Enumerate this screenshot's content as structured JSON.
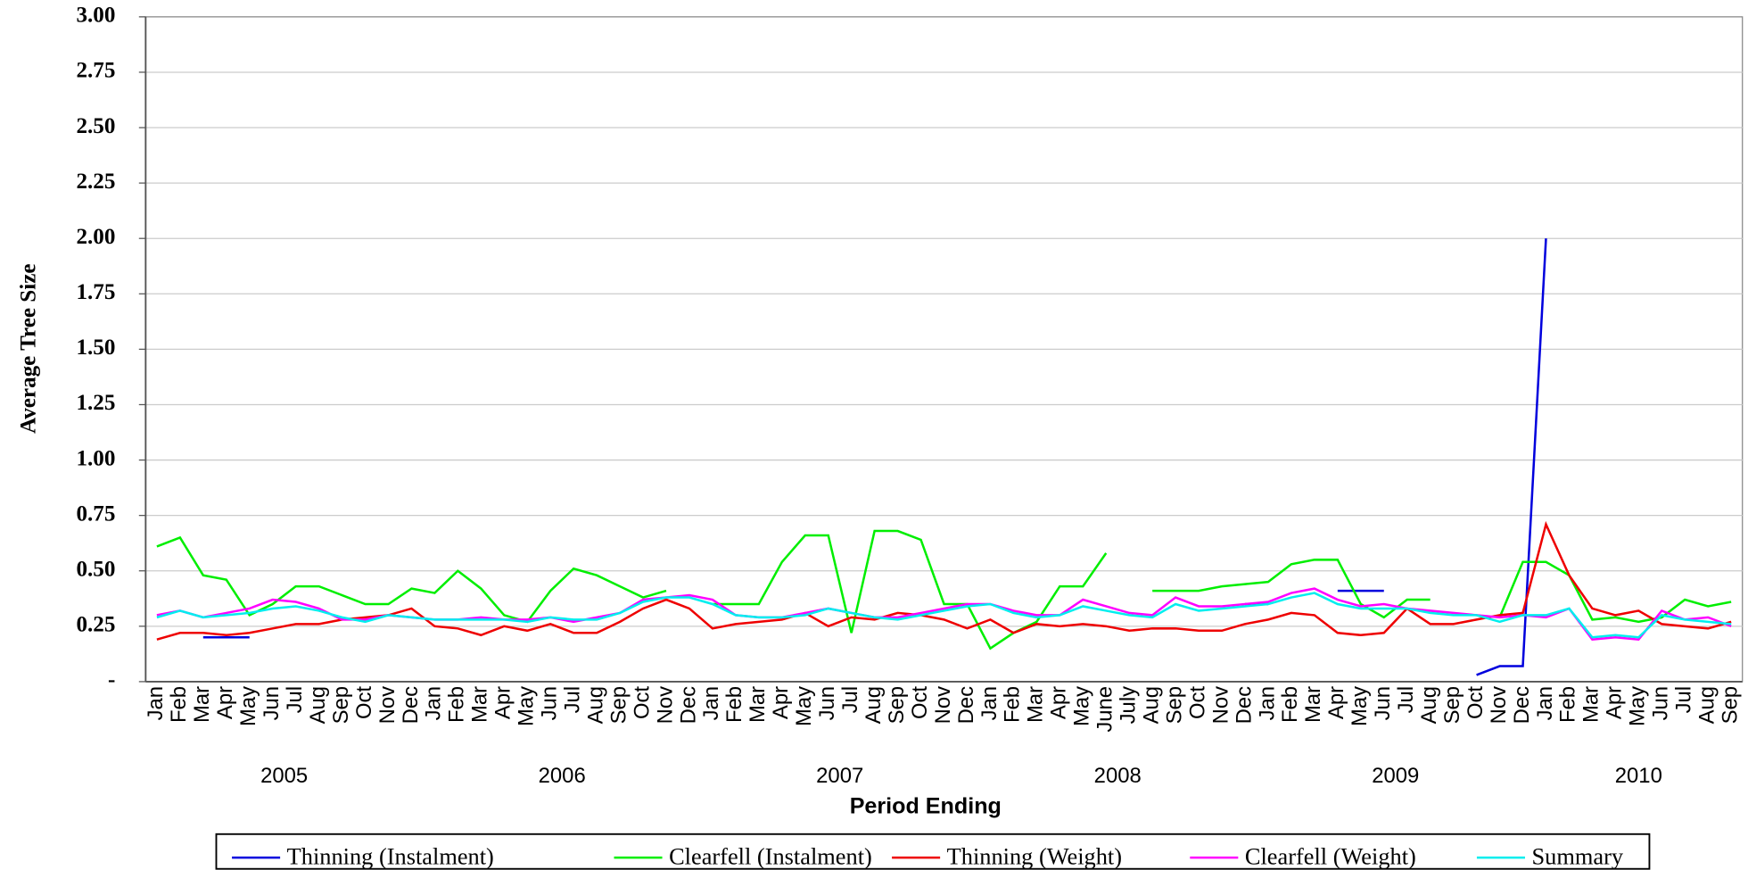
{
  "chart_data": {
    "type": "line",
    "y_label": "Average Tree Size",
    "x_label": "Period Ending",
    "categories": [
      "Jan",
      "Feb",
      "Mar",
      "Apr",
      "May",
      "Jun",
      "Jul",
      "Aug",
      "Sep",
      "Oct",
      "Nov",
      "Dec",
      "Jan",
      "Feb",
      "Mar",
      "Apr",
      "May",
      "Jun",
      "Jul",
      "Aug",
      "Sep",
      "Oct",
      "Nov",
      "Dec",
      "Jan",
      "Feb",
      "Mar",
      "Apr",
      "May",
      "Jun",
      "Jul",
      "Aug",
      "Sep",
      "Oct",
      "Nov",
      "Dec",
      "Jan",
      "Feb",
      "Mar",
      "Apr",
      "May",
      "June",
      "July",
      "Aug",
      "Sep",
      "Oct",
      "Nov",
      "Dec",
      "Jan",
      "Feb",
      "Mar",
      "Apr",
      "May",
      "Jun",
      "Jul",
      "Aug",
      "Sep",
      "Oct",
      "Nov",
      "Dec",
      "Jan",
      "Feb",
      "Mar",
      "Apr",
      "May",
      "Jun",
      "Jul",
      "Aug",
      "Sep"
    ],
    "years": [
      "2005",
      "2006",
      "2007",
      "2008",
      "2009",
      "2010"
    ],
    "ylim": [
      0,
      3
    ],
    "yticks": [
      {
        "value": 0,
        "label": "-"
      },
      0.25,
      {
        "value": 0.5,
        "label": "0.50"
      },
      0.75,
      {
        "value": 1,
        "label": "1.00"
      },
      1.25,
      {
        "value": 1.5,
        "label": "1.50"
      },
      1.75,
      {
        "value": 2,
        "label": "2.00"
      },
      2.25,
      {
        "value": 2.5,
        "label": "2.50"
      },
      2.75,
      {
        "value": 3,
        "label": "3.00"
      }
    ],
    "grid": true,
    "legend": "bottom",
    "series": [
      {
        "name": "Thinning (Instalment)",
        "color": "#0000dd",
        "values": [
          null,
          null,
          0.2,
          0.2,
          0.2,
          null,
          null,
          null,
          null,
          null,
          null,
          null,
          null,
          null,
          null,
          null,
          null,
          null,
          null,
          null,
          null,
          null,
          null,
          null,
          null,
          null,
          null,
          null,
          null,
          null,
          null,
          null,
          null,
          null,
          null,
          null,
          null,
          null,
          null,
          null,
          null,
          null,
          null,
          null,
          null,
          null,
          null,
          0.35,
          0.35,
          null,
          null,
          0.41,
          0.41,
          0.41,
          null,
          null,
          null,
          0.03,
          0.07,
          0.07,
          2.0,
          null,
          null,
          null,
          null,
          null,
          null,
          null,
          null
        ]
      },
      {
        "name": "Clearfell (Instalment)",
        "color": "#00ee00",
        "values": [
          0.61,
          0.65,
          0.48,
          0.46,
          0.3,
          0.35,
          0.43,
          0.43,
          0.39,
          0.35,
          0.35,
          0.42,
          0.4,
          0.5,
          0.42,
          0.3,
          0.27,
          0.41,
          0.51,
          0.48,
          0.43,
          0.38,
          0.41,
          null,
          0.35,
          0.35,
          0.35,
          0.54,
          0.66,
          0.66,
          0.22,
          0.68,
          0.68,
          0.64,
          0.35,
          0.35,
          0.15,
          0.22,
          0.27,
          0.43,
          0.43,
          0.58,
          null,
          0.41,
          0.41,
          0.41,
          0.43,
          0.44,
          0.45,
          0.53,
          0.55,
          0.55,
          0.35,
          0.29,
          0.37,
          0.37,
          null,
          null,
          0.29,
          0.54,
          0.54,
          0.48,
          0.28,
          0.29,
          0.27,
          0.29,
          0.37,
          0.34,
          0.36
        ]
      },
      {
        "name": "Thinning (Weight)",
        "color": "#ee0000",
        "values": [
          0.19,
          0.22,
          0.22,
          0.21,
          0.22,
          0.24,
          0.26,
          0.26,
          0.28,
          0.29,
          0.3,
          0.33,
          0.25,
          0.24,
          0.21,
          0.25,
          0.23,
          0.26,
          0.22,
          0.22,
          0.27,
          0.33,
          0.37,
          0.33,
          0.24,
          0.26,
          0.27,
          0.28,
          0.31,
          0.25,
          0.29,
          0.28,
          0.31,
          0.3,
          0.28,
          0.24,
          0.28,
          0.22,
          0.26,
          0.25,
          0.26,
          0.25,
          0.23,
          0.24,
          0.24,
          0.23,
          0.23,
          0.26,
          0.28,
          0.31,
          0.3,
          0.22,
          0.21,
          0.22,
          0.33,
          0.26,
          0.26,
          0.28,
          0.3,
          0.31,
          0.71,
          0.48,
          0.33,
          0.3,
          0.32,
          0.26,
          0.25,
          0.24,
          0.27
        ]
      },
      {
        "name": "Clearfell (Weight)",
        "color": "#ff00ff",
        "values": [
          0.3,
          0.32,
          0.29,
          0.31,
          0.33,
          0.37,
          0.36,
          0.33,
          0.28,
          0.28,
          0.3,
          0.29,
          0.28,
          0.28,
          0.29,
          0.28,
          0.28,
          0.29,
          0.27,
          0.29,
          0.31,
          0.37,
          0.38,
          0.39,
          0.37,
          0.3,
          0.29,
          0.29,
          0.31,
          0.33,
          0.31,
          0.29,
          0.29,
          0.31,
          0.33,
          0.35,
          0.35,
          0.32,
          0.3,
          0.3,
          0.37,
          0.34,
          0.31,
          0.3,
          0.38,
          0.34,
          0.34,
          0.35,
          0.36,
          0.4,
          0.42,
          0.37,
          0.34,
          0.35,
          0.33,
          0.32,
          0.31,
          0.3,
          0.29,
          0.3,
          0.29,
          0.33,
          0.19,
          0.2,
          0.19,
          0.32,
          0.28,
          0.29,
          0.25
        ]
      },
      {
        "name": "Summary",
        "color": "#00eeee",
        "values": [
          0.29,
          0.32,
          0.29,
          0.3,
          0.31,
          0.33,
          0.34,
          0.32,
          0.29,
          0.27,
          0.3,
          0.29,
          0.28,
          0.28,
          0.28,
          0.28,
          0.27,
          0.29,
          0.28,
          0.28,
          0.31,
          0.36,
          0.38,
          0.38,
          0.35,
          0.3,
          0.29,
          0.29,
          0.3,
          0.33,
          0.31,
          0.29,
          0.28,
          0.3,
          0.32,
          0.34,
          0.35,
          0.31,
          0.29,
          0.3,
          0.34,
          0.32,
          0.3,
          0.29,
          0.35,
          0.32,
          0.33,
          0.34,
          0.35,
          0.38,
          0.4,
          0.35,
          0.33,
          0.33,
          0.33,
          0.31,
          0.3,
          0.3,
          0.27,
          0.3,
          0.3,
          0.33,
          0.2,
          0.21,
          0.2,
          0.3,
          0.28,
          0.27,
          0.26
        ]
      }
    ]
  }
}
